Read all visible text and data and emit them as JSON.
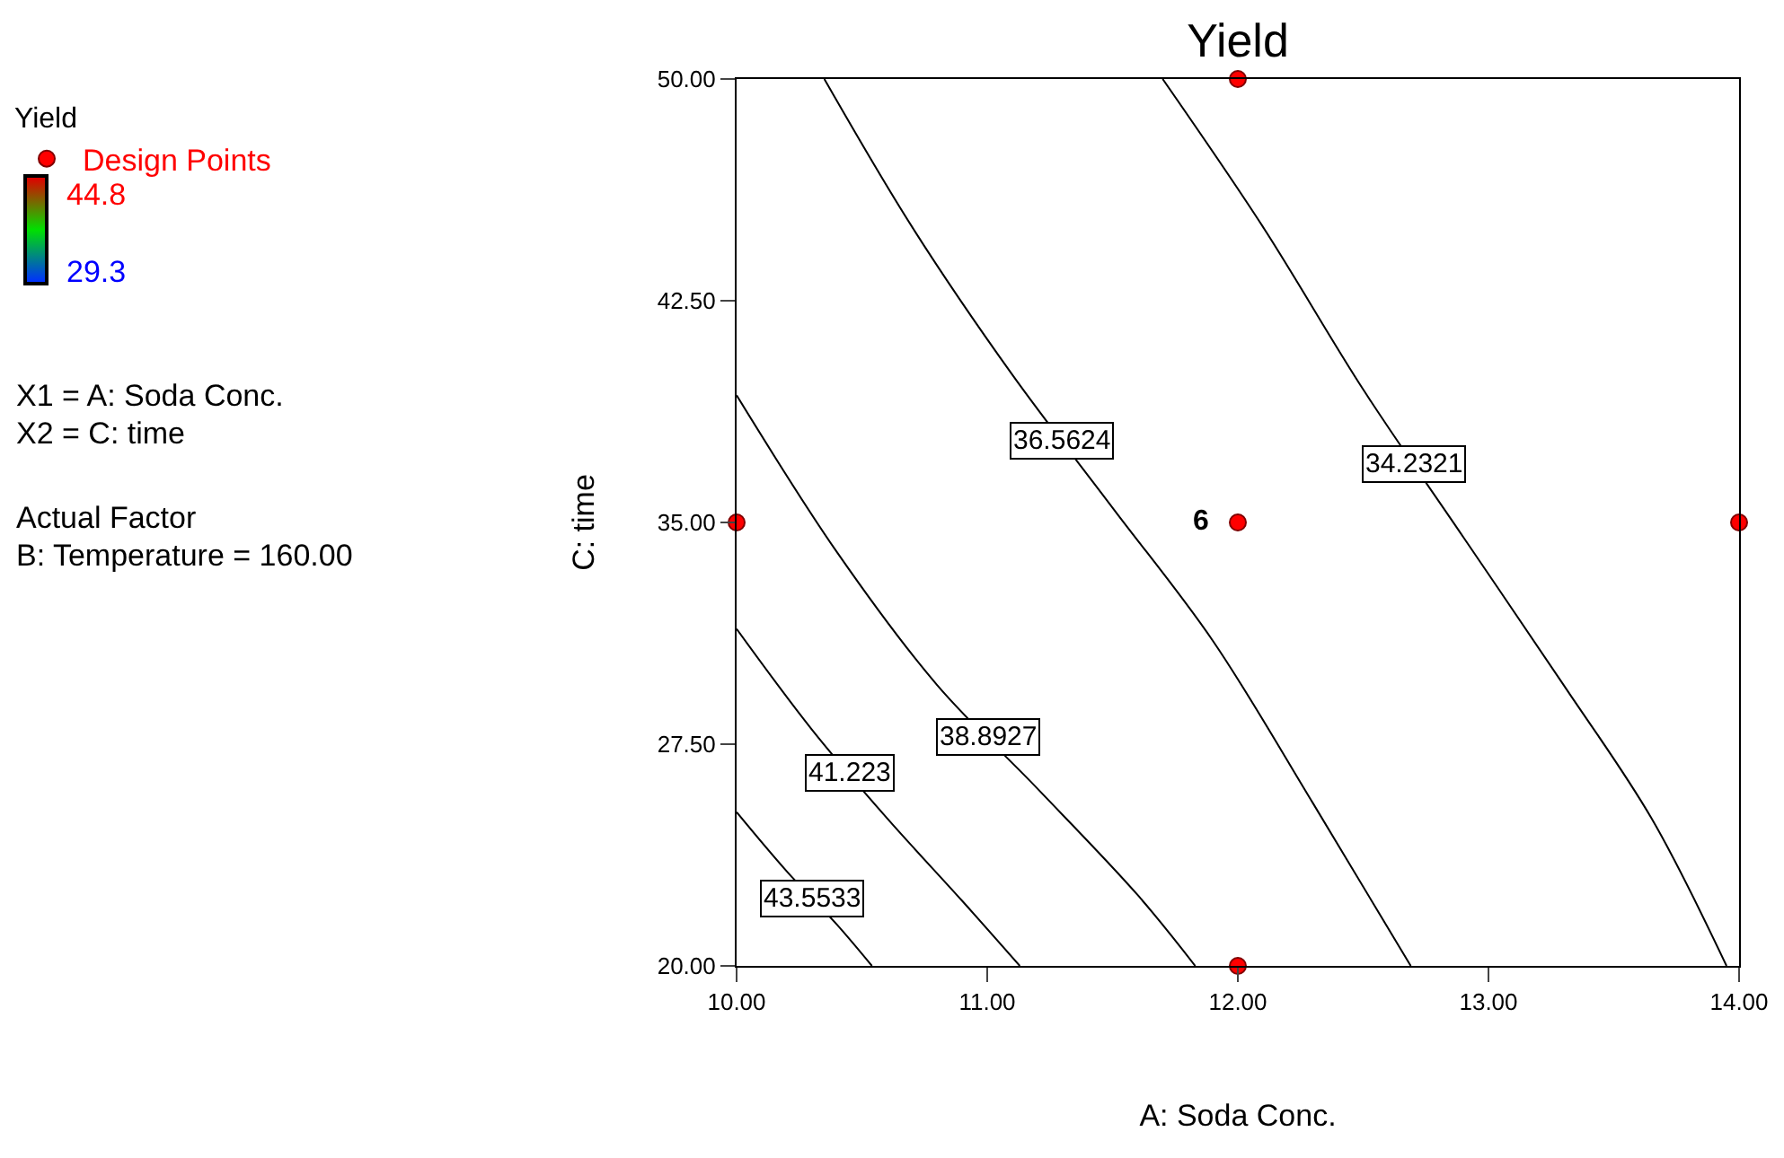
{
  "chart_data": {
    "type": "line",
    "title": "Yield",
    "xlabel": "A: Soda Conc.",
    "ylabel": "C: time",
    "legend_title": "Yield",
    "xlim": [
      10,
      14
    ],
    "xticks": [
      {
        "value": 10,
        "label": "10.00"
      },
      {
        "value": 11,
        "label": "11.00"
      },
      {
        "value": 12,
        "label": "12.00"
      },
      {
        "value": 13,
        "label": "13.00"
      },
      {
        "value": 14,
        "label": "14.00"
      }
    ],
    "ylim": [
      20,
      50
    ],
    "yticks": [
      {
        "value": 20,
        "label": "20.00"
      },
      {
        "value": 27.5,
        "label": "27.50"
      },
      {
        "value": 35,
        "label": "35.00"
      },
      {
        "value": 42.5,
        "label": "42.50"
      },
      {
        "value": 50,
        "label": "50.00"
      }
    ],
    "legend": "left",
    "series": [
      {
        "name": "43.5533",
        "color": "#000000",
        "x": [
          10,
          10.2,
          10.4,
          10.54
        ],
        "values": [
          25.2,
          23.2,
          21.4,
          20
        ]
      },
      {
        "name": "41.223",
        "color": "#000000",
        "x": [
          10,
          10.3,
          10.6,
          10.9,
          11.13
        ],
        "values": [
          31.4,
          28,
          25,
          22.2,
          20
        ]
      },
      {
        "name": "38.8927",
        "color": "#000000",
        "x": [
          10,
          10.4,
          10.8,
          11.2,
          11.6,
          11.83
        ],
        "values": [
          39.3,
          34,
          29.5,
          26,
          22.4,
          20
        ]
      },
      {
        "name": "36.5624",
        "color": "#000000",
        "x": [
          10.35,
          10.7,
          11.1,
          11.5,
          11.9,
          12.3,
          12.69
        ],
        "values": [
          50,
          45,
          40,
          35.5,
          31,
          25.5,
          20
        ]
      },
      {
        "name": "34.2321",
        "color": "#000000",
        "x": [
          11.7,
          12.1,
          12.5,
          12.9,
          13.3,
          13.65,
          13.95
        ],
        "values": [
          50,
          45,
          39.5,
          34.5,
          29.5,
          25,
          20
        ]
      },
      {
        "type": "scatter",
        "name": "Design Points",
        "color": "#ff0000",
        "marker": "circle",
        "x": [
          10,
          12,
          12,
          12,
          14
        ],
        "values": [
          35,
          50,
          35,
          20,
          35
        ]
      }
    ],
    "annotations": [
      "6",
      "44.8",
      "29.3",
      "X1 = A: Soda Conc.",
      "X2 = C: time",
      "Actual Factor",
      "B: Temperature = 160.00"
    ]
  }
}
